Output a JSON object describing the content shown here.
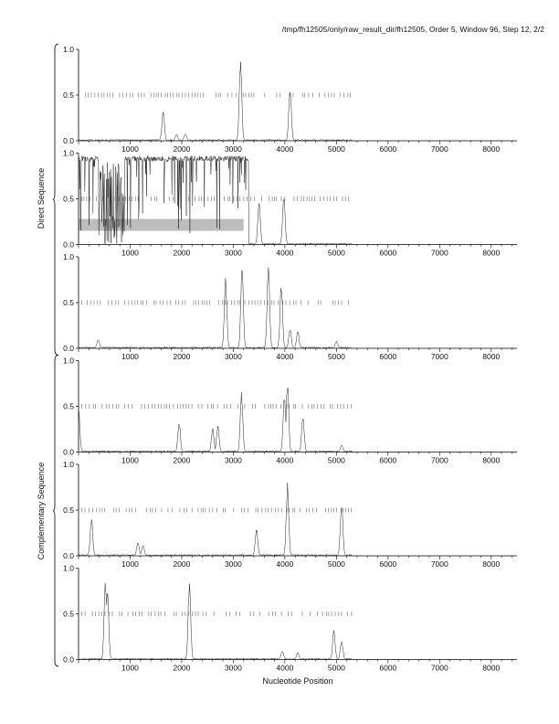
{
  "header": "/tmp/fh12505/only/raw_result_dir/fh12505, Order 5, Window 96, Step 12, 2/2",
  "group_labels": [
    "Direct Sequence",
    "Complementary Sequence"
  ],
  "chart_data": {
    "type": "line",
    "xlabel": "Nucleotide Position",
    "xlim": [
      0,
      8500
    ],
    "ylim": [
      0,
      1
    ],
    "xticks": [
      "1000",
      "2000",
      "3000",
      "4000",
      "5000",
      "6000",
      "7000",
      "8000"
    ],
    "yticks": [
      "0.0",
      "0.5",
      "1.0"
    ],
    "sequence_length": 5300,
    "panels": [
      {
        "group": "Direct Sequence",
        "peaks": [
          [
            1640,
            0.33
          ],
          [
            1900,
            0.07
          ],
          [
            2070,
            0.08
          ],
          [
            3140,
            0.9
          ],
          [
            4100,
            0.6
          ]
        ],
        "shaded_band": null
      },
      {
        "group": "Direct Sequence",
        "dense_high": true,
        "peaks": [
          [
            600,
            0.2
          ],
          [
            750,
            0.1
          ],
          [
            3500,
            0.45
          ],
          [
            3980,
            0.5
          ]
        ],
        "shaded_band": {
          "x": [
            0,
            3200
          ],
          "y": [
            0.15,
            0.28
          ]
        }
      },
      {
        "group": "Direct Sequence",
        "peaks": [
          [
            380,
            0.1
          ],
          [
            2850,
            0.8
          ],
          [
            3170,
            0.93
          ],
          [
            3680,
            0.9
          ],
          [
            3930,
            0.72
          ],
          [
            4100,
            0.22
          ],
          [
            4250,
            0.2
          ],
          [
            5000,
            0.08
          ]
        ],
        "shaded_band": null
      },
      {
        "group": "Complementary Sequence",
        "peaks": [
          [
            0,
            0.5
          ],
          [
            1950,
            0.33
          ],
          [
            2600,
            0.26
          ],
          [
            2700,
            0.3
          ],
          [
            3160,
            0.68
          ],
          [
            3990,
            0.62
          ],
          [
            4050,
            0.78
          ],
          [
            4350,
            0.4
          ],
          [
            5100,
            0.08
          ]
        ],
        "shaded_band": null
      },
      {
        "group": "Complementary Sequence",
        "peaks": [
          [
            250,
            0.42
          ],
          [
            1150,
            0.15
          ],
          [
            1250,
            0.12
          ],
          [
            3450,
            0.3
          ],
          [
            4050,
            0.8
          ],
          [
            5100,
            0.6
          ]
        ],
        "shaded_band": null
      },
      {
        "group": "Complementary Sequence",
        "peaks": [
          [
            520,
            0.9
          ],
          [
            560,
            0.8
          ],
          [
            2150,
            0.88
          ],
          [
            3950,
            0.1
          ],
          [
            4250,
            0.08
          ],
          [
            4950,
            0.33
          ],
          [
            5100,
            0.22
          ]
        ],
        "shaded_band": null
      }
    ]
  }
}
